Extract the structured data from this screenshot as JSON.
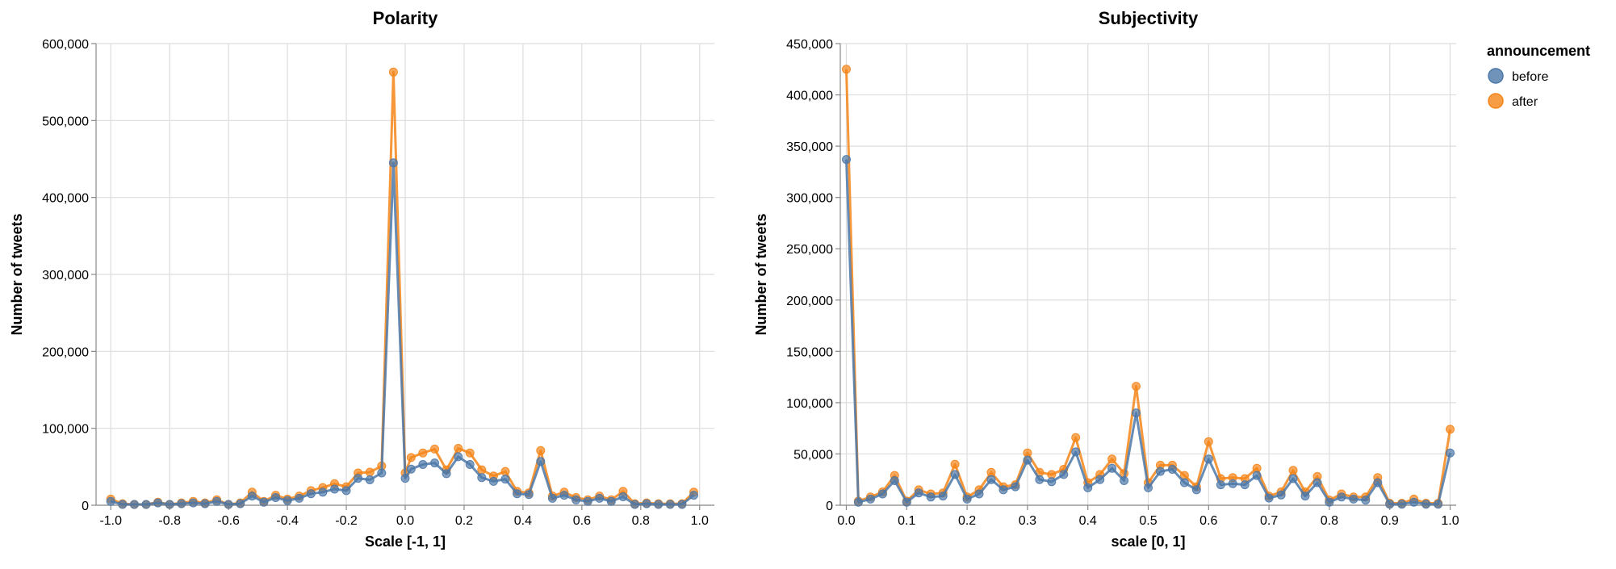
{
  "colors": {
    "before": "#4c78a8",
    "after": "#f58518"
  },
  "legend": {
    "title": "announcement",
    "items": [
      {
        "label": "before",
        "color": "#4c78a8"
      },
      {
        "label": "after",
        "color": "#f58518"
      }
    ]
  },
  "chart_data": [
    {
      "type": "line",
      "title": "Polarity",
      "xlabel": "Scale [-1, 1]",
      "ylabel": "Number of tweets",
      "xlim": [
        -1.05,
        1.05
      ],
      "ylim": [
        0,
        600000
      ],
      "xticks": [
        -1.0,
        -0.8,
        -0.6,
        -0.4,
        -0.2,
        0.0,
        0.2,
        0.4,
        0.6,
        0.8,
        1.0
      ],
      "xtick_labels": [
        "-1.0",
        "-0.8",
        "-0.6",
        "-0.4",
        "-0.2",
        "0.0",
        "0.2",
        "0.4",
        "0.6",
        "0.8",
        "1.0"
      ],
      "yticks": [
        0,
        100000,
        200000,
        300000,
        400000,
        500000,
        600000
      ],
      "ytick_labels": [
        "0",
        "100,000",
        "200,000",
        "300,000",
        "400,000",
        "500,000",
        "600,000"
      ],
      "grid": true,
      "x": [
        -1.0,
        -0.96,
        -0.92,
        -0.88,
        -0.84,
        -0.8,
        -0.76,
        -0.72,
        -0.68,
        -0.64,
        -0.6,
        -0.56,
        -0.52,
        -0.48,
        -0.44,
        -0.4,
        -0.36,
        -0.32,
        -0.28,
        -0.24,
        -0.2,
        -0.16,
        -0.12,
        -0.08,
        -0.04,
        0.0,
        0.02,
        0.06,
        0.1,
        0.14,
        0.18,
        0.22,
        0.26,
        0.3,
        0.34,
        0.38,
        0.42,
        0.46,
        0.5,
        0.54,
        0.58,
        0.62,
        0.66,
        0.7,
        0.74,
        0.78,
        0.82,
        0.86,
        0.9,
        0.94,
        0.98
      ],
      "series": [
        {
          "name": "before",
          "values": [
            5000,
            1000,
            1000,
            1000,
            3000,
            1000,
            2000,
            3000,
            2000,
            5000,
            1000,
            2000,
            12000,
            4000,
            10000,
            6000,
            9000,
            15000,
            17000,
            21000,
            19000,
            35000,
            33000,
            42000,
            445000,
            35000,
            47000,
            53000,
            55000,
            41000,
            63000,
            53000,
            36000,
            31000,
            34000,
            15000,
            14000,
            57000,
            9000,
            13000,
            7000,
            5000,
            9000,
            5000,
            11000,
            1000,
            2000,
            1000,
            1000,
            1000,
            13000
          ]
        },
        {
          "name": "after",
          "values": [
            8000,
            2000,
            1000,
            1000,
            4000,
            1000,
            3000,
            5000,
            3000,
            7000,
            1000,
            3000,
            17000,
            5000,
            13000,
            8000,
            12000,
            19000,
            23000,
            28000,
            24000,
            42000,
            43000,
            51000,
            563000,
            42000,
            62000,
            68000,
            73000,
            46000,
            74000,
            68000,
            46000,
            38000,
            44000,
            18000,
            16000,
            71000,
            12000,
            17000,
            10000,
            7000,
            12000,
            7000,
            18000,
            2000,
            3000,
            2000,
            2000,
            2000,
            17000
          ]
        }
      ]
    },
    {
      "type": "line",
      "title": "Subjectivity",
      "xlabel": "scale [0, 1]",
      "ylabel": "Number of tweets",
      "xlim": [
        -0.01,
        1.01
      ],
      "ylim": [
        0,
        450000
      ],
      "xticks": [
        0.0,
        0.1,
        0.2,
        0.3,
        0.4,
        0.5,
        0.6,
        0.7,
        0.8,
        0.9,
        1.0
      ],
      "xtick_labels": [
        "0.0",
        "0.1",
        "0.2",
        "0.3",
        "0.4",
        "0.5",
        "0.6",
        "0.7",
        "0.8",
        "0.9",
        "1.0"
      ],
      "yticks": [
        0,
        50000,
        100000,
        150000,
        200000,
        250000,
        300000,
        350000,
        400000,
        450000
      ],
      "ytick_labels": [
        "0",
        "50,000",
        "100,000",
        "150,000",
        "200,000",
        "250,000",
        "300,000",
        "350,000",
        "400,000",
        "450,000"
      ],
      "grid": true,
      "x": [
        0.0,
        0.02,
        0.04,
        0.06,
        0.08,
        0.1,
        0.12,
        0.14,
        0.16,
        0.18,
        0.2,
        0.22,
        0.24,
        0.26,
        0.28,
        0.3,
        0.32,
        0.34,
        0.36,
        0.38,
        0.4,
        0.42,
        0.44,
        0.46,
        0.48,
        0.5,
        0.52,
        0.54,
        0.56,
        0.58,
        0.6,
        0.62,
        0.64,
        0.66,
        0.68,
        0.7,
        0.72,
        0.74,
        0.76,
        0.78,
        0.8,
        0.82,
        0.84,
        0.86,
        0.88,
        0.9,
        0.92,
        0.94,
        0.96,
        0.98,
        1.0
      ],
      "series": [
        {
          "name": "before",
          "values": [
            337000,
            3000,
            6000,
            11000,
            24000,
            3000,
            12000,
            8000,
            9000,
            30000,
            6000,
            11000,
            25000,
            15000,
            18000,
            44000,
            25000,
            23000,
            30000,
            52000,
            17000,
            25000,
            36000,
            24000,
            90000,
            17000,
            33000,
            35000,
            22000,
            15000,
            45000,
            20000,
            21000,
            20000,
            29000,
            7000,
            10000,
            26000,
            9000,
            22000,
            3000,
            8000,
            6000,
            5000,
            22000,
            1000,
            1000,
            3000,
            1000,
            1000,
            51000
          ]
        },
        {
          "name": "after",
          "values": [
            425000,
            4000,
            8000,
            13000,
            29000,
            4000,
            15000,
            11000,
            12000,
            40000,
            8000,
            15000,
            32000,
            18000,
            20000,
            51000,
            32000,
            30000,
            35000,
            66000,
            22000,
            30000,
            45000,
            31000,
            116000,
            22000,
            39000,
            39000,
            29000,
            18000,
            62000,
            26000,
            27000,
            26000,
            36000,
            9000,
            13000,
            34000,
            13000,
            28000,
            5000,
            11000,
            8000,
            8000,
            27000,
            2000,
            2000,
            6000,
            2000,
            2000,
            74000
          ]
        }
      ]
    }
  ]
}
